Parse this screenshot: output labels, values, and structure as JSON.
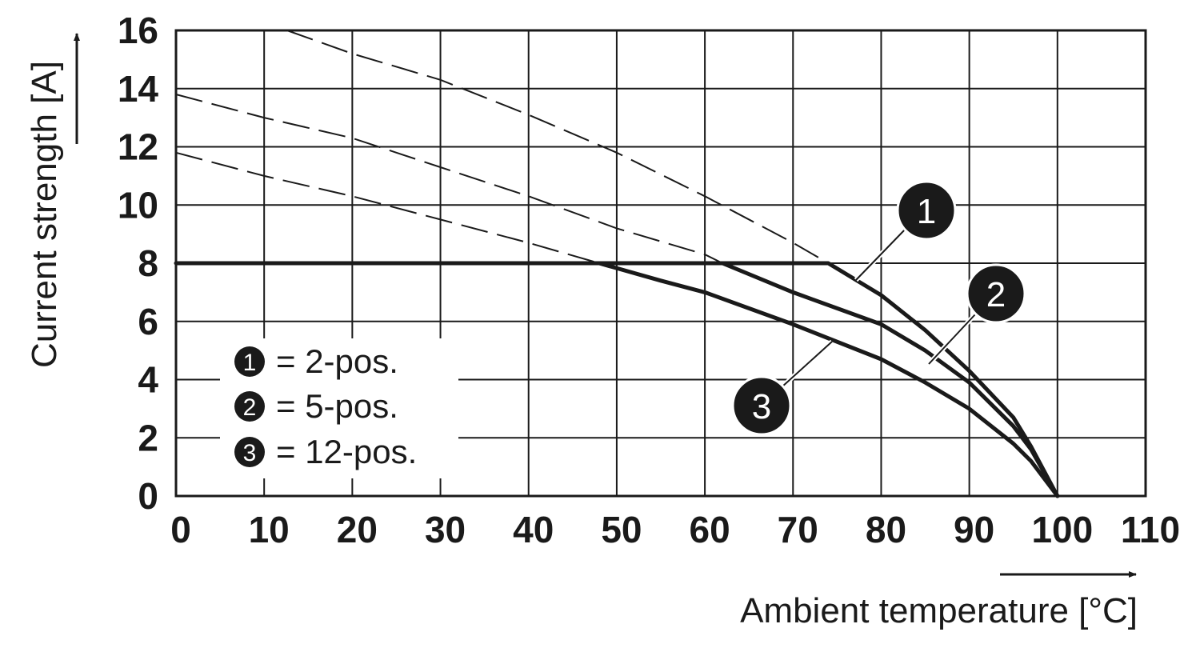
{
  "chart_data": {
    "type": "line",
    "xlabel": "Ambient temperature [°C]",
    "ylabel": "Current strength [A]",
    "xlim": [
      0,
      110
    ],
    "ylim": [
      0,
      16
    ],
    "x_ticks": [
      0,
      10,
      20,
      30,
      40,
      50,
      60,
      70,
      80,
      90,
      100,
      110
    ],
    "y_ticks": [
      0,
      2,
      4,
      6,
      8,
      10,
      12,
      14,
      16
    ],
    "grid": true,
    "legend_position": "bottom-left",
    "series": [
      {
        "id": "1",
        "label": "2-pos.",
        "dashed": {
          "x": [
            12.6,
            20,
            30,
            40,
            50,
            60,
            70,
            74
          ],
          "y": [
            16,
            15.2,
            14.3,
            13.1,
            11.8,
            10.3,
            8.7,
            8
          ]
        },
        "solid": {
          "x": [
            0,
            10,
            20,
            30,
            40,
            50,
            60,
            70,
            74,
            80,
            85,
            90,
            95,
            97,
            100
          ],
          "y": [
            8,
            8,
            8,
            8,
            8,
            8,
            8,
            8,
            8,
            6.9,
            5.7,
            4.3,
            2.7,
            1.7,
            0
          ]
        }
      },
      {
        "id": "2",
        "label": "5-pos.",
        "dashed": {
          "x": [
            0,
            10,
            20,
            30,
            40,
            50,
            60,
            62
          ],
          "y": [
            13.8,
            13.0,
            12.3,
            11.3,
            10.3,
            9.2,
            8.3,
            8
          ]
        },
        "solid": {
          "x": [
            62,
            70,
            80,
            85,
            90,
            95,
            97,
            100
          ],
          "y": [
            8,
            7.0,
            5.9,
            5.0,
            3.9,
            2.4,
            1.6,
            0
          ]
        }
      },
      {
        "id": "3",
        "label": "12-pos.",
        "dashed": {
          "x": [
            0,
            10,
            20,
            30,
            40,
            48
          ],
          "y": [
            11.8,
            11.0,
            10.3,
            9.5,
            8.7,
            8
          ]
        },
        "solid": {
          "x": [
            48,
            55,
            60,
            70,
            80,
            85,
            90,
            95,
            97,
            100
          ],
          "y": [
            8,
            7.4,
            7.0,
            5.9,
            4.7,
            3.9,
            3.0,
            1.8,
            1.2,
            0
          ]
        }
      }
    ],
    "legend": [
      {
        "num": "1",
        "text": "= 2-pos."
      },
      {
        "num": "2",
        "text": "= 5-pos."
      },
      {
        "num": "3",
        "text": "= 12-pos."
      }
    ],
    "callouts": [
      "1",
      "2",
      "3"
    ]
  }
}
